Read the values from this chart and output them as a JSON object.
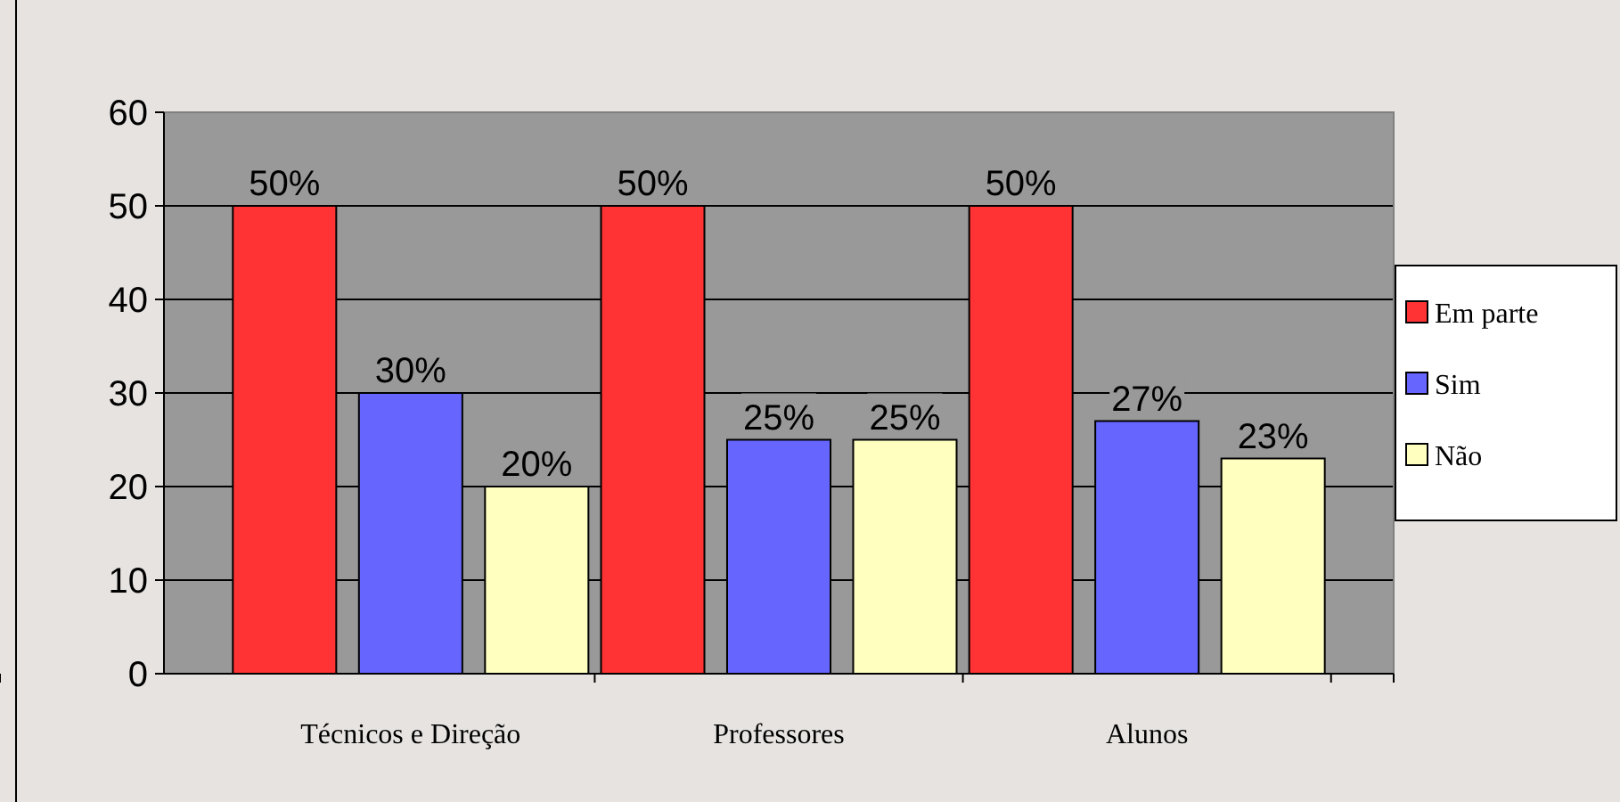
{
  "chart_data": {
    "type": "bar",
    "categories": [
      "Técnicos e Direção",
      "Professores",
      "Alunos"
    ],
    "series": [
      {
        "name": "Em parte",
        "color": "#ff3333",
        "values": [
          50,
          50,
          50
        ],
        "value_labels": [
          "50%",
          "50%",
          "50%"
        ]
      },
      {
        "name": "Sim",
        "color": "#6666ff",
        "values": [
          30,
          25,
          27
        ],
        "value_labels": [
          "30%",
          "25%",
          "27%"
        ]
      },
      {
        "name": "Não",
        "color": "#ffffc0",
        "values": [
          20,
          25,
          23
        ],
        "value_labels": [
          "20%",
          "25%",
          "23%"
        ]
      }
    ],
    "ylim": [
      0,
      60
    ],
    "yticks": [
      0,
      10,
      20,
      30,
      40,
      50,
      60
    ],
    "grid": "y",
    "legend": "right"
  }
}
